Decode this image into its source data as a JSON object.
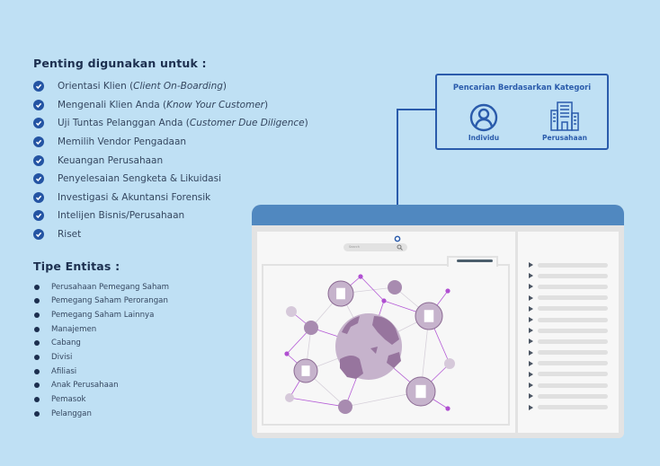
{
  "uses": {
    "title": "Penting digunakan untuk :",
    "items": [
      {
        "text": "Orientasi Klien (",
        "italic": "Client On-Boarding",
        "end": ")"
      },
      {
        "text": "Mengenali Klien Anda (",
        "italic": "Know Your Customer",
        "end": ")"
      },
      {
        "text": "Uji Tuntas Pelanggan Anda (",
        "italic": "Customer Due Diligence",
        "end": ")"
      },
      {
        "text": "Memilih Vendor Pengadaan"
      },
      {
        "text": "Keuangan Perusahaan"
      },
      {
        "text": "Penyelesaian Sengketa & Likuidasi"
      },
      {
        "text": "Investigasi & Akuntansi Forensik"
      },
      {
        "text": "Intelijen Bisnis/Perusahaan"
      },
      {
        "text": "Riset"
      }
    ]
  },
  "entities": {
    "title": "Tipe Entitas :",
    "items": [
      "Perusahaan Pemegang Saham",
      "Pemegang Saham Perorangan",
      "Pemegang Saham Lainnya",
      "Manajemen",
      "Cabang",
      "Divisi",
      "Afiliasi",
      "Anak Perusahaan",
      "Pemasok",
      "Pelanggan"
    ]
  },
  "category": {
    "title": "Pencarian Berdasarkan Kategori",
    "individual": {
      "label": "Individu",
      "icon": "person-icon"
    },
    "company": {
      "label": "Perusahaan",
      "icon": "building-icon"
    }
  },
  "window": {
    "search_placeholder": "Search",
    "list_rows": 14
  },
  "colors": {
    "background": "#bfe0f4",
    "accent": "#2a5bab",
    "window_header": "#5088c0",
    "network": "#9b78a3",
    "link": "#b45ad6"
  }
}
